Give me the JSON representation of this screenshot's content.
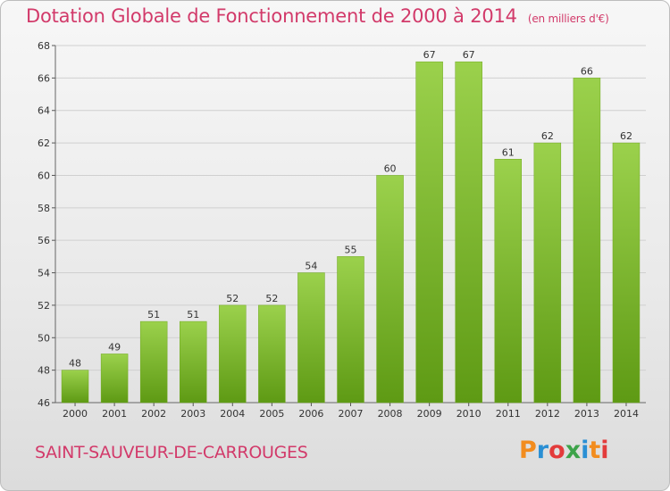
{
  "header": {
    "title": "Dotation Globale de Fonctionnement de 2000 à 2014",
    "unit": "(en milliers d'€)"
  },
  "commune": "SAINT-SAUVEUR-DE-CARROUGES",
  "logo": {
    "text": "Proxiti",
    "letters": [
      "P",
      "r",
      "o",
      "x",
      "i",
      "t",
      "i"
    ],
    "colors": [
      "#f28c1e",
      "#2a8fd4",
      "#e33b3b",
      "#3da34a",
      "#2a8fd4",
      "#f28c1e",
      "#e33b3b"
    ]
  },
  "colors": {
    "accent": "#d23a6a",
    "bar_top": "#9bd14c",
    "bar_bottom": "#5e9a14",
    "grid": "#cfcfcf"
  },
  "chart_data": {
    "type": "bar",
    "title": "Dotation Globale de Fonctionnement de 2000 à 2014",
    "subtitle": "(en milliers d'€)",
    "categories": [
      "2000",
      "2001",
      "2002",
      "2003",
      "2004",
      "2005",
      "2006",
      "2007",
      "2008",
      "2009",
      "2010",
      "2011",
      "2012",
      "2013",
      "2014"
    ],
    "values": [
      48,
      49,
      51,
      51,
      52,
      52,
      54,
      55,
      60,
      67,
      67,
      61,
      62,
      66,
      62
    ],
    "ylim": [
      46,
      68
    ],
    "yticks": [
      46,
      48,
      50,
      52,
      54,
      56,
      58,
      60,
      62,
      64,
      66,
      68
    ],
    "grid": true,
    "data_labels": true
  }
}
